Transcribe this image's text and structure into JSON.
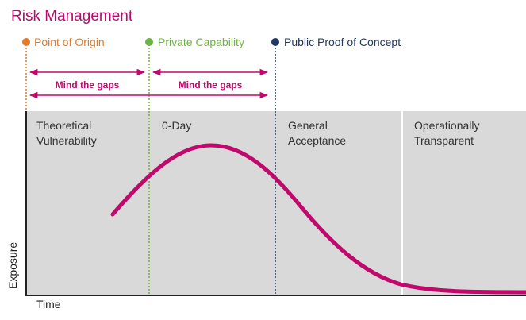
{
  "title": "Risk Management",
  "colors": {
    "title": "#c0086d",
    "curve": "#c0086d",
    "panel": "#d9d9d9",
    "origin": "#e07a2c",
    "private": "#6db33f",
    "public": "#1f3864",
    "text": "#333333"
  },
  "milestones": [
    {
      "label": "Point of Origin",
      "color": "#e07a2c"
    },
    {
      "label": "Private Capability",
      "color": "#6db33f"
    },
    {
      "label": "Public Proof of Concept",
      "color": "#1f3864"
    }
  ],
  "gaps": [
    {
      "label": "Mind the gaps"
    },
    {
      "label": "Mind the gaps"
    }
  ],
  "phases": [
    {
      "line1": "Theoretical",
      "line2": "Vulnerability"
    },
    {
      "line1": "0-Day",
      "line2": ""
    },
    {
      "line1": "General",
      "line2": "Acceptance"
    },
    {
      "line1": "Operationally",
      "line2": "Transparent"
    }
  ],
  "axes": {
    "x_label": "Time",
    "y_label": "Exposure"
  }
}
